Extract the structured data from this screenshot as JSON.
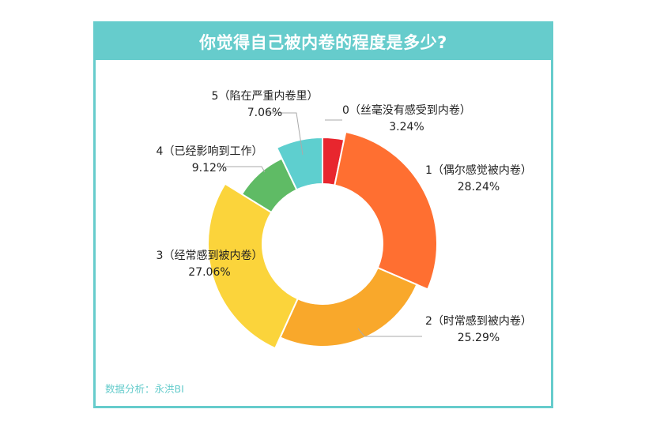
{
  "header": {
    "title": "你觉得自己被内卷的程度是多少?"
  },
  "footer": {
    "source": "数据分析：永洪BI"
  },
  "colors": {
    "frame": "#66cccc",
    "title_text": "#ffffff",
    "footer_text": "#66cccc"
  },
  "chart_data": {
    "type": "pie",
    "variant": "donut",
    "title": "你觉得自己被内卷的程度是多少?",
    "slices": [
      {
        "label": "0（丝毫没有感受到内卷）",
        "value": 3.24,
        "display": "3.24%",
        "color": "#e8262e"
      },
      {
        "label": "1（偶尔感觉被内卷）",
        "value": 28.24,
        "display": "28.24%",
        "color": "#ff6f31"
      },
      {
        "label": "2（时常感到被内卷）",
        "value": 25.29,
        "display": "25.29%",
        "color": "#f9a82b"
      },
      {
        "label": "3（经常感到被内卷）",
        "value": 27.06,
        "display": "27.06%",
        "color": "#fbd43b"
      },
      {
        "label": "4（已经影响到工作）",
        "value": 9.12,
        "display": "9.12%",
        "color": "#5fbb65"
      },
      {
        "label": "5（陷在严重内卷里）",
        "value": 7.06,
        "display": "7.06%",
        "color": "#5ecfcf"
      }
    ],
    "legend": "none",
    "labels": "outside with leader lines"
  }
}
